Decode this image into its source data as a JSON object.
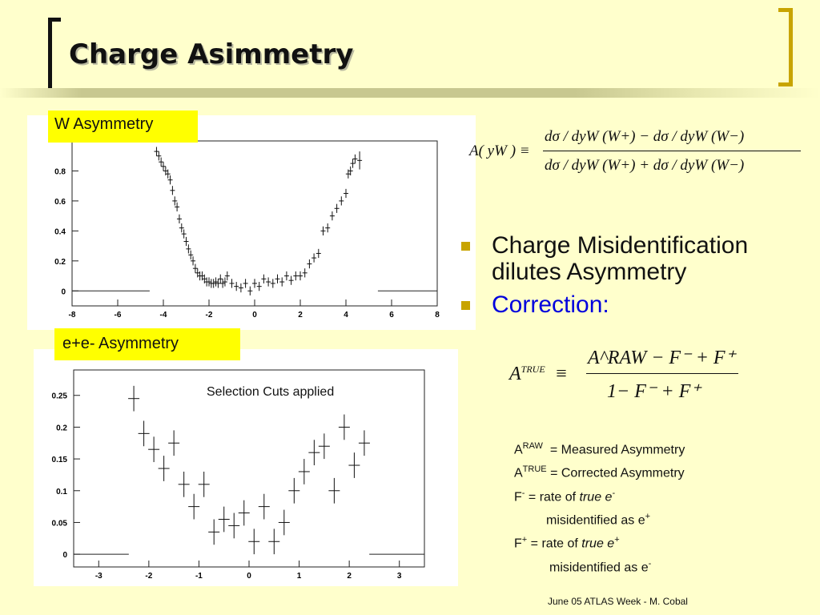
{
  "slide": {
    "title": "Charge Asimmetry",
    "footer": "June 05 ATLAS Week - M. Cobal"
  },
  "plots": {
    "w_label": "W Asymmetry",
    "e_label": "e+e- Asymmetry",
    "e_annotation": "Selection Cuts applied"
  },
  "formula1": {
    "lhs": "A( yW ) ≡",
    "numerator": "dσ / dyW (W+) − dσ / dyW (W−)",
    "denominator": "dσ / dyW (W+) + dσ / dyW (W−)"
  },
  "bullets": [
    "Charge Misidentification dilutes Asymmetry",
    "Correction:"
  ],
  "formula2": {
    "lhs_base": "A",
    "lhs_sup": "TRUE",
    "equiv": "≡",
    "numerator": "A^RAW − F⁻ + F⁺",
    "denominator": "1− F⁻ + F⁺"
  },
  "definitions": {
    "a_raw_sup": "RAW",
    "a_raw_text": "= Measured Asymmetry",
    "a_true_sup": "TRUE",
    "a_true_text": "= Corrected Asymmetry",
    "f_minus_text": "= rate of",
    "f_minus_em": "true e",
    "f_minus_cont": "misidentified as e",
    "f_plus_text": "= rate of",
    "f_plus_em": "true e",
    "f_plus_cont": "misidentified as e"
  },
  "chart_data": [
    {
      "type": "scatter",
      "xlim": [
        -8,
        8
      ],
      "ylim": [
        -0.1,
        1.0
      ],
      "x_ticks": [
        "-8",
        "-6",
        "-4",
        "-2",
        "0",
        "2",
        "4",
        "6",
        "8"
      ],
      "y_ticks": [
        "0",
        "0.2",
        "0.4",
        "0.6",
        "0.8"
      ],
      "x": [
        -4.3,
        -4.2,
        -4.1,
        -4.0,
        -3.9,
        -3.8,
        -3.7,
        -3.6,
        -3.5,
        -3.4,
        -3.3,
        -3.2,
        -3.1,
        -3.0,
        -2.9,
        -2.8,
        -2.7,
        -2.6,
        -2.5,
        -2.4,
        -2.3,
        -2.2,
        -2.1,
        -2.0,
        -1.9,
        -1.8,
        -1.7,
        -1.6,
        -1.5,
        -1.4,
        -1.3,
        -1.2,
        -1.0,
        -0.8,
        -0.6,
        -0.4,
        -0.2,
        0.0,
        0.2,
        0.4,
        0.6,
        0.8,
        1.0,
        1.2,
        1.4,
        1.6,
        1.8,
        2.0,
        2.2,
        2.4,
        2.6,
        2.8,
        3.0,
        3.2,
        3.4,
        3.6,
        3.8,
        4.0,
        4.1,
        4.2,
        4.3,
        4.4,
        4.6
      ],
      "y": [
        0.93,
        0.9,
        0.86,
        0.83,
        0.8,
        0.78,
        0.74,
        0.67,
        0.6,
        0.56,
        0.48,
        0.42,
        0.38,
        0.33,
        0.28,
        0.24,
        0.2,
        0.15,
        0.12,
        0.1,
        0.1,
        0.08,
        0.06,
        0.06,
        0.05,
        0.05,
        0.06,
        0.05,
        0.08,
        0.05,
        0.06,
        0.1,
        0.05,
        0.03,
        0.02,
        0.05,
        0.0,
        0.05,
        0.03,
        0.08,
        0.06,
        0.05,
        0.08,
        0.06,
        0.1,
        0.07,
        0.1,
        0.1,
        0.12,
        0.18,
        0.22,
        0.25,
        0.4,
        0.42,
        0.5,
        0.55,
        0.6,
        0.65,
        0.78,
        0.8,
        0.85,
        0.88,
        0.87
      ],
      "errors": [
        0.03,
        0.03,
        0.03,
        0.03,
        0.03,
        0.03,
        0.03,
        0.03,
        0.03,
        0.03,
        0.03,
        0.03,
        0.03,
        0.03,
        0.03,
        0.03,
        0.03,
        0.03,
        0.03,
        0.03,
        0.03,
        0.03,
        0.03,
        0.03,
        0.03,
        0.03,
        0.03,
        0.03,
        0.03,
        0.03,
        0.03,
        0.03,
        0.03,
        0.03,
        0.03,
        0.03,
        0.03,
        0.03,
        0.03,
        0.03,
        0.03,
        0.03,
        0.03,
        0.03,
        0.03,
        0.03,
        0.03,
        0.03,
        0.03,
        0.03,
        0.03,
        0.03,
        0.03,
        0.03,
        0.03,
        0.03,
        0.03,
        0.03,
        0.03,
        0.03,
        0.03,
        0.03,
        0.06
      ]
    },
    {
      "type": "scatter",
      "xlim": [
        -3.5,
        3.5
      ],
      "ylim": [
        -0.02,
        0.29
      ],
      "x_ticks": [
        "-3",
        "-2",
        "-1",
        "0",
        "1",
        "2",
        "3"
      ],
      "y_ticks": [
        "0",
        "0.05",
        "0.1",
        "0.15",
        "0.2",
        "0.25"
      ],
      "x": [
        -2.3,
        -2.1,
        -1.9,
        -1.7,
        -1.5,
        -1.3,
        -1.1,
        -0.9,
        -0.7,
        -0.5,
        -0.3,
        -0.1,
        0.1,
        0.3,
        0.5,
        0.7,
        0.9,
        1.1,
        1.3,
        1.5,
        1.7,
        1.9,
        2.1,
        2.3
      ],
      "y": [
        0.245,
        0.19,
        0.165,
        0.135,
        0.175,
        0.11,
        0.075,
        0.11,
        0.035,
        0.055,
        0.045,
        0.065,
        0.02,
        0.075,
        0.02,
        0.05,
        0.1,
        0.13,
        0.16,
        0.17,
        0.1,
        0.2,
        0.14,
        0.175
      ],
      "errors": [
        0.02,
        0.02,
        0.02,
        0.02,
        0.02,
        0.02,
        0.02,
        0.02,
        0.02,
        0.02,
        0.02,
        0.02,
        0.02,
        0.02,
        0.02,
        0.02,
        0.02,
        0.02,
        0.02,
        0.02,
        0.02,
        0.02,
        0.02,
        0.02
      ]
    }
  ]
}
